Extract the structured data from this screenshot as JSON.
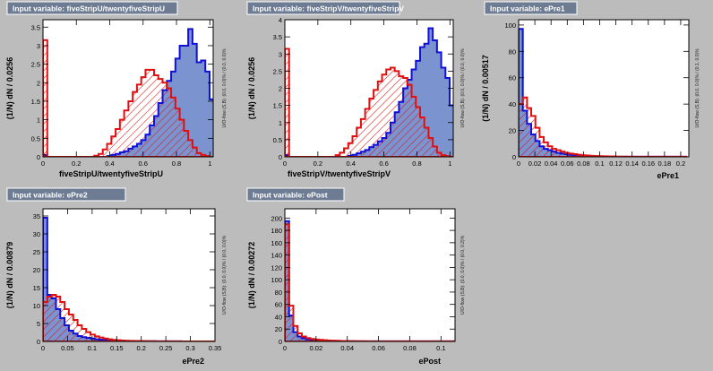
{
  "colors": {
    "background": "#bcbcbc",
    "title_box": "#6d7c93",
    "signal_fill": "#7b93cf",
    "signal_line": "#1010d8",
    "background_line": "#e01010",
    "hatch": "#e01010",
    "frame_bg": "#ffffff"
  },
  "overflow_label": "U/O-flow (S,B): (0.0, 0.0)% / (0.0, 0.0)%",
  "overflow_labels": [
    "U/O-flow (S,B): (0.0, 0.0)% / (0.0, 0.0)%",
    "U/O-flow (S,B): (0.0, 0.0)% / (0.0, 0.0)%",
    "U/O-flow (S,B): (0.0, 0.0)% / (0.1, 0.0)%",
    "U/O-flow (S,B): (0.0, 0.0)% / (0.0, 0.0)%",
    "U/O-flow (S,B): (0.0, 0.0)% / (0.0, 0.2)%"
  ],
  "chart_data": [
    {
      "type": "histogram",
      "title": "Input variable: fiveStripU/twentyfiveStripU",
      "xlabel": "fiveStripU/twentyfiveStripU",
      "ylabel": "(1/N) dN / 0.0256",
      "xlim": [
        0,
        1.02
      ],
      "ylim": [
        0,
        3.7
      ],
      "xticks": [
        "0",
        "0.2",
        "0.4",
        "0.6",
        "0.8",
        "1"
      ],
      "yticks": [
        "0",
        "0.5",
        "1",
        "1.5",
        "2",
        "2.5",
        "3",
        "3.5"
      ],
      "xtick_values": [
        0,
        0.2,
        0.4,
        0.6,
        0.8,
        1
      ],
      "ytick_values": [
        0,
        0.5,
        1,
        1.5,
        2,
        2.5,
        3,
        3.5
      ],
      "bin_width": 0.0256,
      "series": [
        {
          "role": "signal",
          "values": [
            0.05,
            0,
            0,
            0,
            0,
            0,
            0,
            0,
            0,
            0,
            0,
            0,
            0,
            0,
            0,
            0.02,
            0.05,
            0.08,
            0.12,
            0.15,
            0.22,
            0.28,
            0.35,
            0.45,
            0.6,
            0.85,
            1.1,
            1.45,
            1.8,
            2.05,
            2.3,
            2.65,
            3.0,
            3.0,
            3.45,
            3.05,
            2.55,
            2.6,
            2.3,
            1.55,
            1.05
          ]
        },
        {
          "role": "background",
          "values": [
            3.15,
            0,
            0,
            0,
            0,
            0,
            0,
            0,
            0,
            0,
            0,
            0,
            0.03,
            0.08,
            0.2,
            0.35,
            0.55,
            0.75,
            1.0,
            1.25,
            1.5,
            1.75,
            1.95,
            2.15,
            2.35,
            2.35,
            2.2,
            2.1,
            2.0,
            1.85,
            1.6,
            1.3,
            1.0,
            0.7,
            0.45,
            0.25,
            0.1,
            0.05,
            0.02,
            0,
            0
          ]
        }
      ]
    },
    {
      "type": "histogram",
      "title": "Input variable: fiveStripV/twentyfiveStripV",
      "xlabel": "fiveStripV/twentyfiveStripV",
      "ylabel": "(1/N) dN / 0.0256",
      "xlim": [
        0,
        1.02
      ],
      "ylim": [
        0,
        4
      ],
      "xticks": [
        "0",
        "0.2",
        "0.4",
        "0.6",
        "0.8",
        "1"
      ],
      "yticks": [
        "0",
        "0.5",
        "1",
        "1.5",
        "2",
        "2.5",
        "3",
        "3.5",
        "4"
      ],
      "xtick_values": [
        0,
        0.2,
        0.4,
        0.6,
        0.8,
        1
      ],
      "ytick_values": [
        0,
        0.5,
        1,
        1.5,
        2,
        2.5,
        3,
        3.5,
        4
      ],
      "bin_width": 0.0256,
      "series": [
        {
          "role": "signal",
          "values": [
            0.05,
            0,
            0,
            0,
            0,
            0,
            0,
            0,
            0,
            0,
            0,
            0,
            0,
            0,
            0,
            0.03,
            0.06,
            0.1,
            0.15,
            0.2,
            0.28,
            0.35,
            0.45,
            0.55,
            0.7,
            1.0,
            1.3,
            1.6,
            2.0,
            2.25,
            2.55,
            2.8,
            3.2,
            3.3,
            3.75,
            3.4,
            3.05,
            2.6,
            2.3,
            1.5,
            1.0
          ]
        },
        {
          "role": "background",
          "values": [
            3.15,
            0,
            0,
            0,
            0,
            0,
            0,
            0,
            0,
            0,
            0,
            0,
            0.05,
            0.12,
            0.25,
            0.4,
            0.6,
            0.85,
            1.1,
            1.4,
            1.7,
            1.95,
            2.2,
            2.4,
            2.55,
            2.6,
            2.5,
            2.35,
            2.3,
            2.1,
            1.75,
            1.45,
            1.15,
            0.85,
            0.55,
            0.3,
            0.12,
            0.05,
            0.02,
            0,
            0
          ]
        }
      ]
    },
    {
      "type": "histogram",
      "title": "Input variable: ePre1",
      "xlabel": "ePre1",
      "ylabel": "(1/N) dN / 0.00517",
      "xlim": [
        0,
        0.21
      ],
      "ylim": [
        0,
        104
      ],
      "xticks": [
        "0",
        "0.02",
        "0.04",
        "0.06",
        "0.08",
        "0.1",
        "0.12",
        "0.14",
        "0.16",
        "0.18",
        "0.2"
      ],
      "yticks": [
        "0",
        "20",
        "40",
        "60",
        "80",
        "100"
      ],
      "xtick_values": [
        0,
        0.02,
        0.04,
        0.06,
        0.08,
        0.1,
        0.12,
        0.14,
        0.16,
        0.18,
        0.2
      ],
      "ytick_values": [
        0,
        20,
        40,
        60,
        80,
        100
      ],
      "bin_width": 0.00517,
      "series": [
        {
          "role": "signal",
          "values": [
            97,
            35,
            25,
            17,
            12,
            8,
            6,
            5,
            4,
            3,
            2.5,
            2,
            1.5,
            1.2,
            1,
            0.8,
            0.6,
            0.5,
            0.4,
            0.3,
            0.3,
            0.2,
            0.2,
            0.1,
            0.1,
            0.1,
            0.1,
            0.1,
            0.1,
            0.1,
            0.1,
            0.1,
            0.1,
            0.1,
            0.1,
            0.1,
            0.1,
            0.1,
            0.1,
            0.1
          ]
        },
        {
          "role": "background",
          "values": [
            40,
            45,
            37,
            31,
            22,
            15,
            11,
            8,
            6,
            5,
            4,
            3,
            2.5,
            2,
            1.5,
            1.2,
            1,
            0.8,
            0.6,
            0.5,
            0.4,
            0.3,
            0.3,
            0.2,
            0.2,
            0.2,
            0.1,
            0.1,
            0.1,
            0.1,
            0.1,
            0.1,
            0.1,
            0.1,
            0.1,
            0.1,
            0.1,
            0.1,
            0.1,
            0.1
          ]
        }
      ]
    },
    {
      "type": "histogram",
      "title": "Input variable: ePre2",
      "xlabel": "ePre2",
      "ylabel": "(1/N) dN / 0.00879",
      "xlim": [
        0,
        0.35
      ],
      "ylim": [
        0,
        37
      ],
      "xticks": [
        "0",
        "0.05",
        "0.1",
        "0.15",
        "0.2",
        "0.25",
        "0.3",
        "0.35"
      ],
      "yticks": [
        "0",
        "5",
        "10",
        "15",
        "20",
        "25",
        "30",
        "35"
      ],
      "xtick_values": [
        0,
        0.05,
        0.1,
        0.15,
        0.2,
        0.25,
        0.3,
        0.35
      ],
      "ytick_values": [
        0,
        5,
        10,
        15,
        20,
        25,
        30,
        35
      ],
      "bin_width": 0.00879,
      "series": [
        {
          "role": "signal",
          "values": [
            34.5,
            13,
            12,
            9,
            6.5,
            4.5,
            3,
            2.2,
            1.5,
            1.2,
            1,
            0.8,
            0.6,
            0.5,
            0.4,
            0.3,
            0.25,
            0.2,
            0.15,
            0.12,
            0.1,
            0.1,
            0.08,
            0.06,
            0.05,
            0.05,
            0.04,
            0.03,
            0.03,
            0.02,
            0.02,
            0.02,
            0.01,
            0.01,
            0.01,
            0.01,
            0.01,
            0.01,
            0.01,
            0.01
          ]
        },
        {
          "role": "background",
          "values": [
            11,
            12.5,
            13,
            12.5,
            11,
            9,
            7.5,
            6,
            4.5,
            3.5,
            2.6,
            1.9,
            1.4,
            1.1,
            0.8,
            0.6,
            0.45,
            0.35,
            0.25,
            0.2,
            0.15,
            0.12,
            0.1,
            0.08,
            0.06,
            0.05,
            0.04,
            0.03,
            0.03,
            0.02,
            0.02,
            0.02,
            0.01,
            0.01,
            0.01,
            0.01,
            0.01,
            0.01,
            0.01,
            0.01
          ]
        }
      ]
    },
    {
      "type": "histogram",
      "title": "Input variable: ePost",
      "xlabel": "ePost",
      "ylabel": "(1/N) dN / 0.00272",
      "xlim": [
        0,
        0.109
      ],
      "ylim": [
        0,
        215
      ],
      "xticks": [
        "0",
        "0.02",
        "0.04",
        "0.06",
        "0.08",
        "0.1"
      ],
      "yticks": [
        "0",
        "20",
        "40",
        "60",
        "80",
        "100",
        "120",
        "140",
        "160",
        "180",
        "200"
      ],
      "xtick_values": [
        0,
        0.02,
        0.04,
        0.06,
        0.08,
        0.1
      ],
      "ytick_values": [
        0,
        20,
        40,
        60,
        80,
        100,
        120,
        140,
        160,
        180,
        200
      ],
      "bin_width": 0.00272,
      "series": [
        {
          "role": "signal",
          "values": [
            195,
            42,
            15,
            8,
            5,
            3.5,
            2.5,
            2,
            1.5,
            1.2,
            1,
            0.8,
            0.6,
            0.5,
            0.4,
            0.3,
            0.3,
            0.2,
            0.2,
            0.2,
            0.15,
            0.1,
            0.1,
            0.1,
            0.1,
            0.1,
            0.1,
            0.1,
            0.1,
            0.1,
            0.1,
            0.1,
            0.1,
            0.1,
            0.1,
            0.1,
            0.1,
            0.1,
            0.1,
            0.1
          ]
        },
        {
          "role": "background",
          "values": [
            190,
            58,
            25,
            13,
            8,
            5.5,
            4,
            3,
            2.5,
            2,
            1.5,
            1.2,
            1,
            0.8,
            0.6,
            0.5,
            0.4,
            0.35,
            0.3,
            0.25,
            0.2,
            0.2,
            0.15,
            0.15,
            0.1,
            0.1,
            0.1,
            0.1,
            0.1,
            0.1,
            0.1,
            0.1,
            0.1,
            0.1,
            0.1,
            0.1,
            0.1,
            0.1,
            0.1,
            0.1
          ]
        }
      ]
    }
  ]
}
